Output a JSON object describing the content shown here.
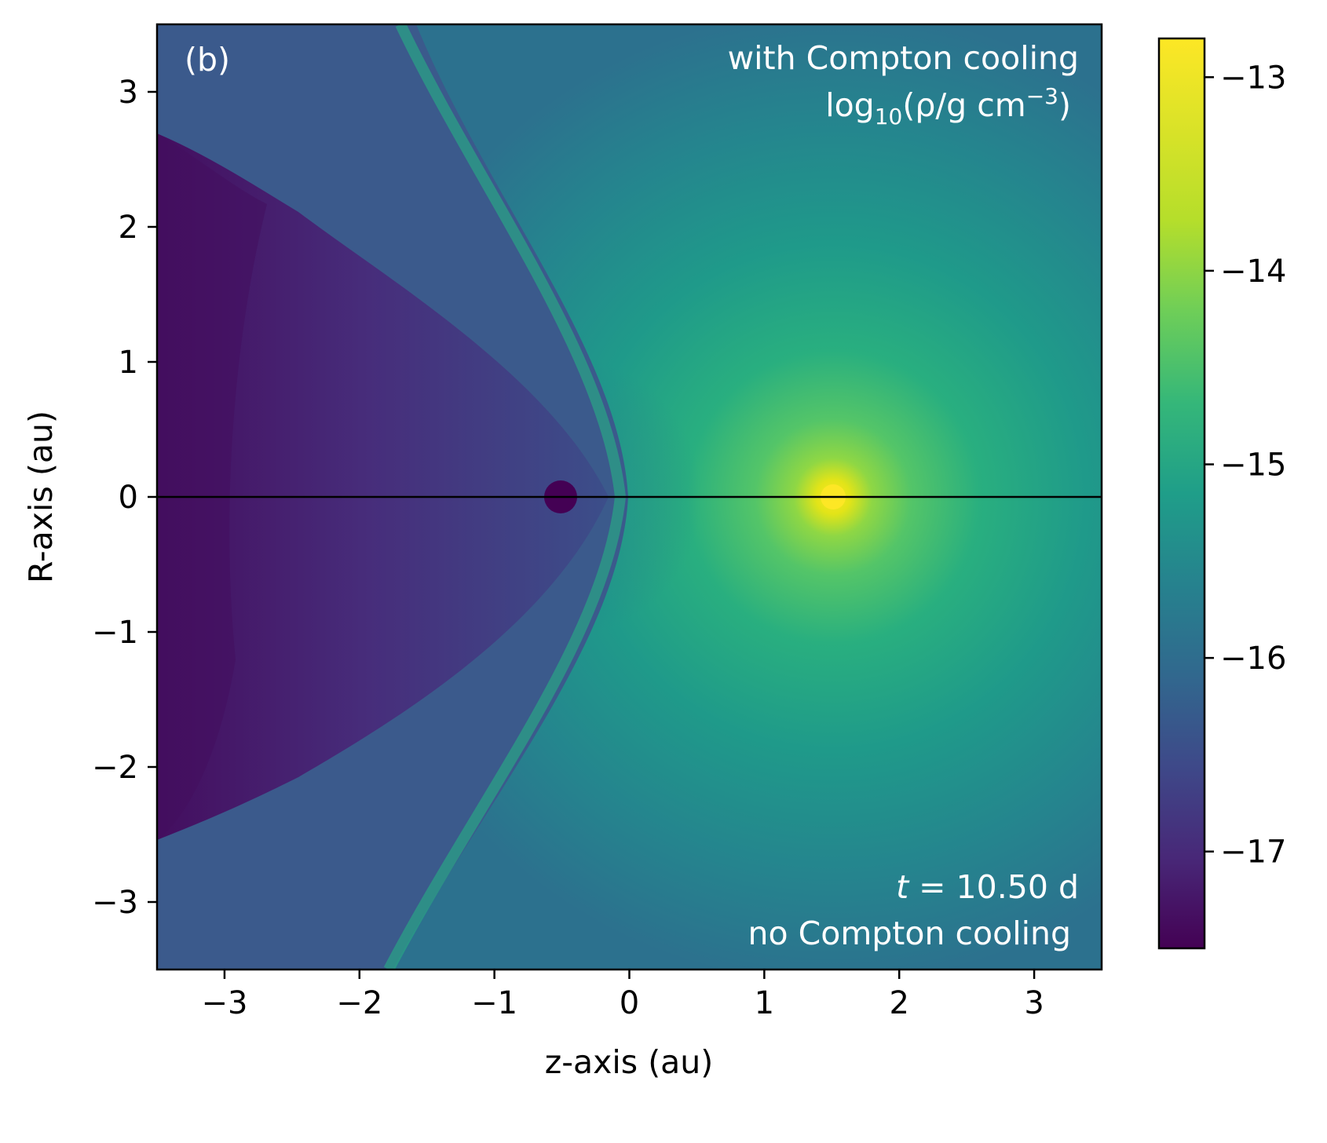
{
  "chart_data": {
    "type": "heatmap",
    "panel_label": "(b)",
    "annotations": {
      "top_right_line1": "with Compton cooling",
      "top_right_line2_main": "log",
      "top_right_line2_sub": "10",
      "top_right_line2_rest": "(ρ/g cm",
      "top_right_line2_sup": "−3",
      "top_right_line2_close": ")",
      "bottom_right_t_symbol": "t",
      "bottom_right_line1": " = 10.50 d",
      "bottom_right_line2": "no Compton cooling"
    },
    "xlabel": "z-axis (au)",
    "ylabel": "R-axis (au)",
    "xlim": [
      -3.5,
      3.5
    ],
    "ylim": [
      -3.5,
      3.5
    ],
    "x_ticks": [
      -3,
      -2,
      -1,
      0,
      1,
      2,
      3
    ],
    "x_tick_labels": [
      "−3",
      "−2",
      "−1",
      "0",
      "1",
      "2",
      "3"
    ],
    "y_ticks": [
      -3,
      -2,
      -1,
      0,
      1,
      2,
      3
    ],
    "y_tick_labels": [
      "−3",
      "−2",
      "−1",
      "0",
      "1",
      "2",
      "3"
    ],
    "colorbar": {
      "min": -17.5,
      "max": -12.8,
      "ticks": [
        -13,
        -14,
        -15,
        -16,
        -17
      ],
      "tick_labels": [
        "−13",
        "−14",
        "−15",
        "−16",
        "−17"
      ],
      "colormap": "viridis"
    },
    "features": {
      "dense_star": {
        "z": 1.5,
        "R": 0.0,
        "log_rho": -12.9,
        "color": "#fde725"
      },
      "compact_object": {
        "z": -0.5,
        "R": 0.0,
        "radius_au": 0.12,
        "color": "#440154"
      },
      "bow_shock_apex_z": -0.05,
      "background_log_rho": -15.7,
      "cavity_log_rho": -17.0,
      "midplane_R": 0.0
    }
  }
}
